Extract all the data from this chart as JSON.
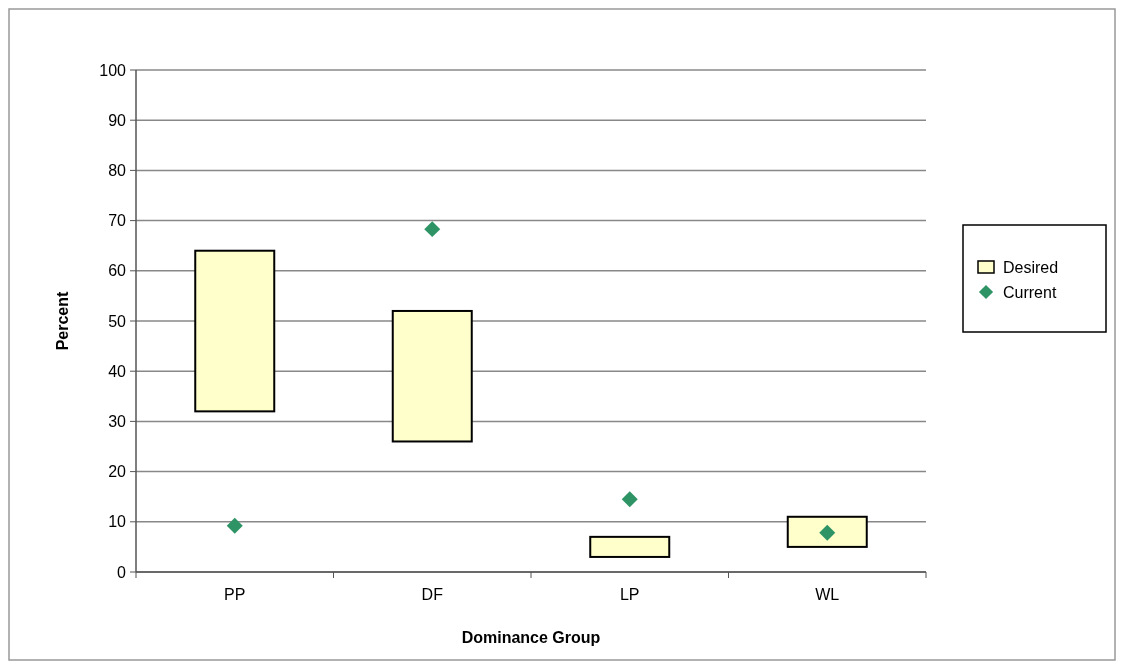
{
  "chart_data": {
    "type": "bar",
    "xlabel": "Dominance Group",
    "ylabel": "Percent",
    "categories": [
      "PP",
      "DF",
      "LP",
      "WL"
    ],
    "series": [
      {
        "name": "Desired",
        "color": "#ffffcc",
        "base": [
          32,
          26,
          3,
          5
        ],
        "values": [
          32,
          26,
          4,
          6
        ]
      },
      {
        "name": "Current",
        "type": "scatter",
        "color": "#2e9466",
        "x": [
          "PP",
          "DF",
          "LP",
          "WL"
        ],
        "values": [
          9.2,
          68.3,
          14.5,
          7.8
        ]
      }
    ],
    "ylim": [
      0,
      100
    ],
    "yticks": [
      0,
      10,
      20,
      30,
      40,
      50,
      60,
      70,
      80,
      90,
      100
    ],
    "grid": "y",
    "legend": "right",
    "marker": "diamond"
  }
}
